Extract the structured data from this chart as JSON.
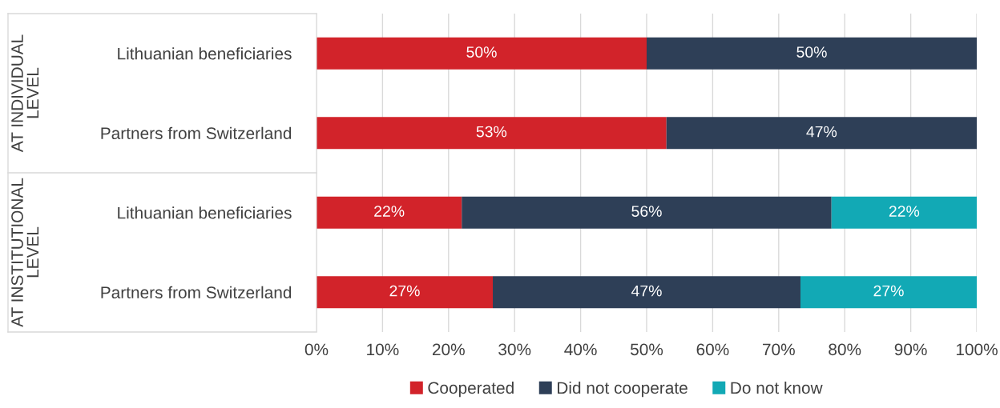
{
  "chart_data": {
    "type": "bar",
    "orientation": "horizontal",
    "stacked": true,
    "categories": [
      "Lithuanian beneficiaries",
      "Partners from Switzerland",
      "Lithuanian beneficiaries",
      "Partners from Switzerland"
    ],
    "series": [
      {
        "name": "Cooperated",
        "color": "#d2232a",
        "values": [
          50,
          53,
          22,
          26.7
        ],
        "value_labels": [
          "50%",
          "53%",
          "22%",
          "27%"
        ]
      },
      {
        "name": "Did not cooperate",
        "color": "#2e3f57",
        "values": [
          50,
          47,
          56,
          46.6
        ],
        "value_labels": [
          "50%",
          "47%",
          "56%",
          "47%"
        ]
      },
      {
        "name": "Do not know",
        "color": "#12a9b5",
        "values": [
          null,
          null,
          22,
          26.7
        ],
        "value_labels": [
          null,
          null,
          "22%",
          "27%"
        ]
      }
    ],
    "xlim": [
      0,
      100
    ],
    "xticks": [
      {
        "value": 0,
        "label": "0%"
      },
      {
        "value": 10,
        "label": "10%"
      },
      {
        "value": 20,
        "label": "20%"
      },
      {
        "value": 30,
        "label": "30%"
      },
      {
        "value": 40,
        "label": "40%"
      },
      {
        "value": 50,
        "label": "50%"
      },
      {
        "value": 60,
        "label": "60%"
      },
      {
        "value": 70,
        "label": "70%"
      },
      {
        "value": 80,
        "label": "80%"
      },
      {
        "value": 90,
        "label": "90%"
      },
      {
        "value": 100,
        "label": "100%"
      }
    ],
    "annotations": [
      "AT INDIVIDUAL\nLEVEL",
      "AT INSTITUTIONAL\nLEVEL"
    ],
    "grid": "x",
    "legend": "bottom"
  }
}
